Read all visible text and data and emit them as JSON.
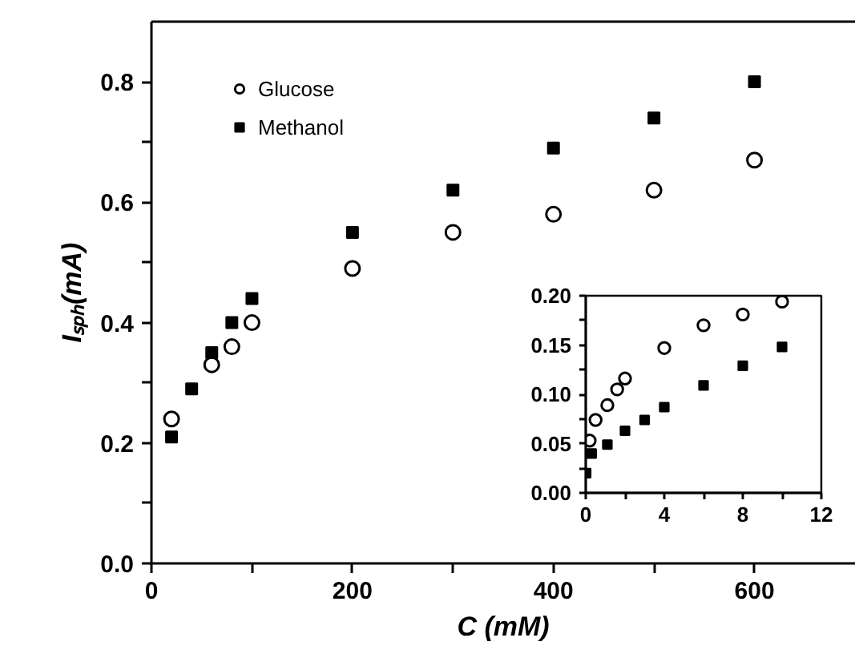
{
  "chart_data": [
    {
      "type": "scatter",
      "xlabel": "C (mM)",
      "ylabel": "Iₛₚₕ(mA)",
      "xlim": [
        0,
        700
      ],
      "ylim": [
        0,
        0.9
      ],
      "xticks": [
        0,
        {
          "value": 100,
          "label": null
        },
        200,
        {
          "value": 300,
          "label": null
        },
        400,
        {
          "value": 500,
          "label": null
        },
        600
      ],
      "yticks": [
        {
          "value": 0,
          "label": "0.0"
        },
        {
          "value": 0.1,
          "label": null
        },
        0.2,
        {
          "value": 0.3,
          "label": null
        },
        0.4,
        {
          "value": 0.5,
          "label": null
        },
        0.6,
        {
          "value": 0.7,
          "label": null
        },
        0.8
      ],
      "legend": "top left",
      "grid": false,
      "series": [
        {
          "name": "Glucose",
          "color": "#000000",
          "marker": "circle",
          "x": [
            20,
            60,
            80,
            100,
            200,
            300,
            400,
            500,
            600
          ],
          "values": [
            0.24,
            0.33,
            0.36,
            0.4,
            0.49,
            0.55,
            0.58,
            0.62,
            0.67
          ]
        },
        {
          "name": "Methanol",
          "color": "#000000",
          "marker": "square",
          "x": [
            20,
            40,
            60,
            80,
            100,
            200,
            300,
            400,
            500,
            600
          ],
          "values": [
            0.21,
            0.29,
            0.35,
            0.4,
            0.44,
            0.55,
            0.62,
            0.69,
            0.74,
            0.8
          ]
        }
      ]
    },
    {
      "type": "scatter",
      "xlim": [
        0,
        12
      ],
      "ylim": [
        0,
        0.2
      ],
      "xticks": [
        0,
        {
          "value": 2,
          "label": null
        },
        4,
        {
          "value": 6,
          "label": null
        },
        8,
        {
          "value": 10,
          "label": null
        },
        12
      ],
      "yticks": [
        {
          "value": 0,
          "label": "0.00"
        },
        {
          "value": 0.025,
          "label": null
        },
        0.05,
        {
          "value": 0.075,
          "label": null
        },
        {
          "value": 0.1,
          "label": "0.10"
        },
        {
          "value": 0.125,
          "label": null
        },
        0.15,
        {
          "value": 0.175,
          "label": null
        },
        {
          "value": 0.2,
          "label": "0.20"
        }
      ],
      "legend": false,
      "grid": false,
      "series": [
        {
          "color": "#000000",
          "marker": "circle",
          "x": [
            0.2,
            0.5,
            1.1,
            1.6,
            2,
            4,
            6,
            8,
            10
          ],
          "values": [
            0.053,
            0.074,
            0.089,
            0.105,
            0.116,
            0.147,
            0.17,
            0.181,
            0.194
          ]
        },
        {
          "color": "#000000",
          "marker": "square",
          "x": [
            0.02,
            0.3,
            1.1,
            2,
            3,
            4,
            6,
            8,
            10
          ],
          "values": [
            0.02,
            0.04,
            0.049,
            0.063,
            0.074,
            0.087,
            0.109,
            0.129,
            0.148
          ]
        }
      ]
    }
  ]
}
